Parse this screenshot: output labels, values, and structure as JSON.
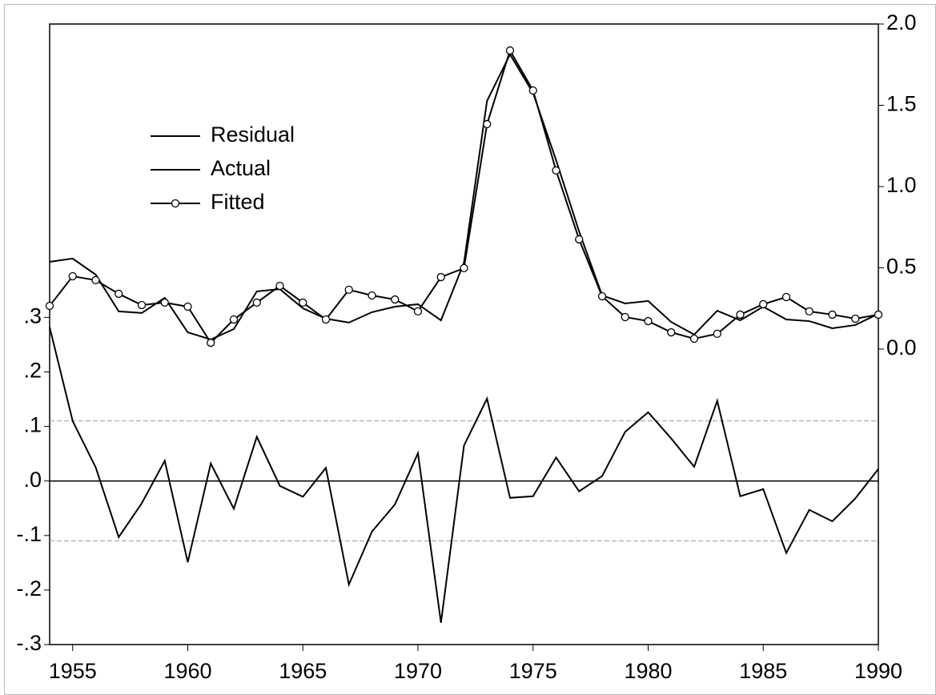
{
  "chart_data": {
    "type": "line",
    "x": [
      1954,
      1955,
      1956,
      1957,
      1958,
      1959,
      1960,
      1961,
      1962,
      1963,
      1964,
      1965,
      1966,
      1967,
      1968,
      1969,
      1970,
      1971,
      1972,
      1973,
      1974,
      1975,
      1976,
      1977,
      1978,
      1979,
      1980,
      1981,
      1982,
      1983,
      1984,
      1985,
      1986,
      1987,
      1988,
      1989,
      1990
    ],
    "series": [
      {
        "name": "Residual",
        "color": "#000000",
        "axis": "y",
        "values": [
          0.282,
          0.11,
          0.025,
          -0.103,
          -0.041,
          0.037,
          -0.149,
          0.032,
          -0.051,
          0.081,
          -0.009,
          -0.029,
          0.024,
          -0.19,
          -0.093,
          -0.043,
          0.051,
          -0.26,
          0.065,
          0.151,
          -0.031,
          -0.028,
          0.043,
          -0.019,
          0.009,
          0.09,
          0.126,
          0.078,
          0.026,
          0.147,
          -0.028,
          -0.015,
          -0.132,
          -0.053,
          -0.074,
          -0.032,
          0.022
        ]
      },
      {
        "name": "Actual",
        "color": "#000000",
        "axis": "y2",
        "values": [
          0.537,
          0.557,
          0.458,
          0.232,
          0.222,
          0.315,
          0.103,
          0.059,
          0.123,
          0.355,
          0.369,
          0.251,
          0.187,
          0.163,
          0.227,
          0.261,
          0.276,
          0.177,
          0.532,
          1.527,
          1.813,
          1.576,
          1.163,
          0.724,
          0.33,
          0.281,
          0.296,
          0.167,
          0.089,
          0.236,
          0.177,
          0.261,
          0.182,
          0.172,
          0.128,
          0.148,
          0.217
        ]
      },
      {
        "name": "Fitted",
        "color": "#000000",
        "axis": "y2",
        "marker": "circle",
        "values": [
          0.266,
          0.448,
          0.424,
          0.34,
          0.271,
          0.286,
          0.261,
          0.039,
          0.182,
          0.286,
          0.389,
          0.286,
          0.182,
          0.365,
          0.33,
          0.305,
          0.232,
          0.443,
          0.498,
          1.384,
          1.837,
          1.591,
          1.099,
          0.675,
          0.325,
          0.197,
          0.172,
          0.103,
          0.064,
          0.094,
          0.212,
          0.276,
          0.32,
          0.232,
          0.212,
          0.187,
          0.212
        ]
      }
    ],
    "xlim": [
      1954,
      1990
    ],
    "xticks": [
      1955,
      1960,
      1965,
      1970,
      1975,
      1980,
      1985,
      1990
    ],
    "ylim": [
      -0.3,
      0.838
    ],
    "yticks": [
      {
        "value": -0.3,
        "label": "-.3"
      },
      {
        "value": -0.2,
        "label": "-.2"
      },
      {
        "value": -0.1,
        "label": "-.1"
      },
      {
        "value": 0,
        "label": ".0"
      },
      {
        "value": 0.1,
        "label": ".1"
      },
      {
        "value": 0.2,
        "label": ".2"
      },
      {
        "value": 0.3,
        "label": ".3"
      }
    ],
    "y2lim": [
      -1.818,
      2.0
    ],
    "y2ticks": [
      {
        "value": 0,
        "label": "0.0"
      },
      {
        "value": 0.5,
        "label": "0.5"
      },
      {
        "value": 1,
        "label": "1.0"
      },
      {
        "value": 1.5,
        "label": "1.5"
      },
      {
        "value": 2,
        "label": "2.0"
      }
    ],
    "hlines": [
      {
        "value": 0,
        "style": "solid"
      },
      {
        "value": 0.11,
        "style": "dashed"
      },
      {
        "value": -0.11,
        "style": "dashed"
      }
    ],
    "legend": "upper-left"
  }
}
